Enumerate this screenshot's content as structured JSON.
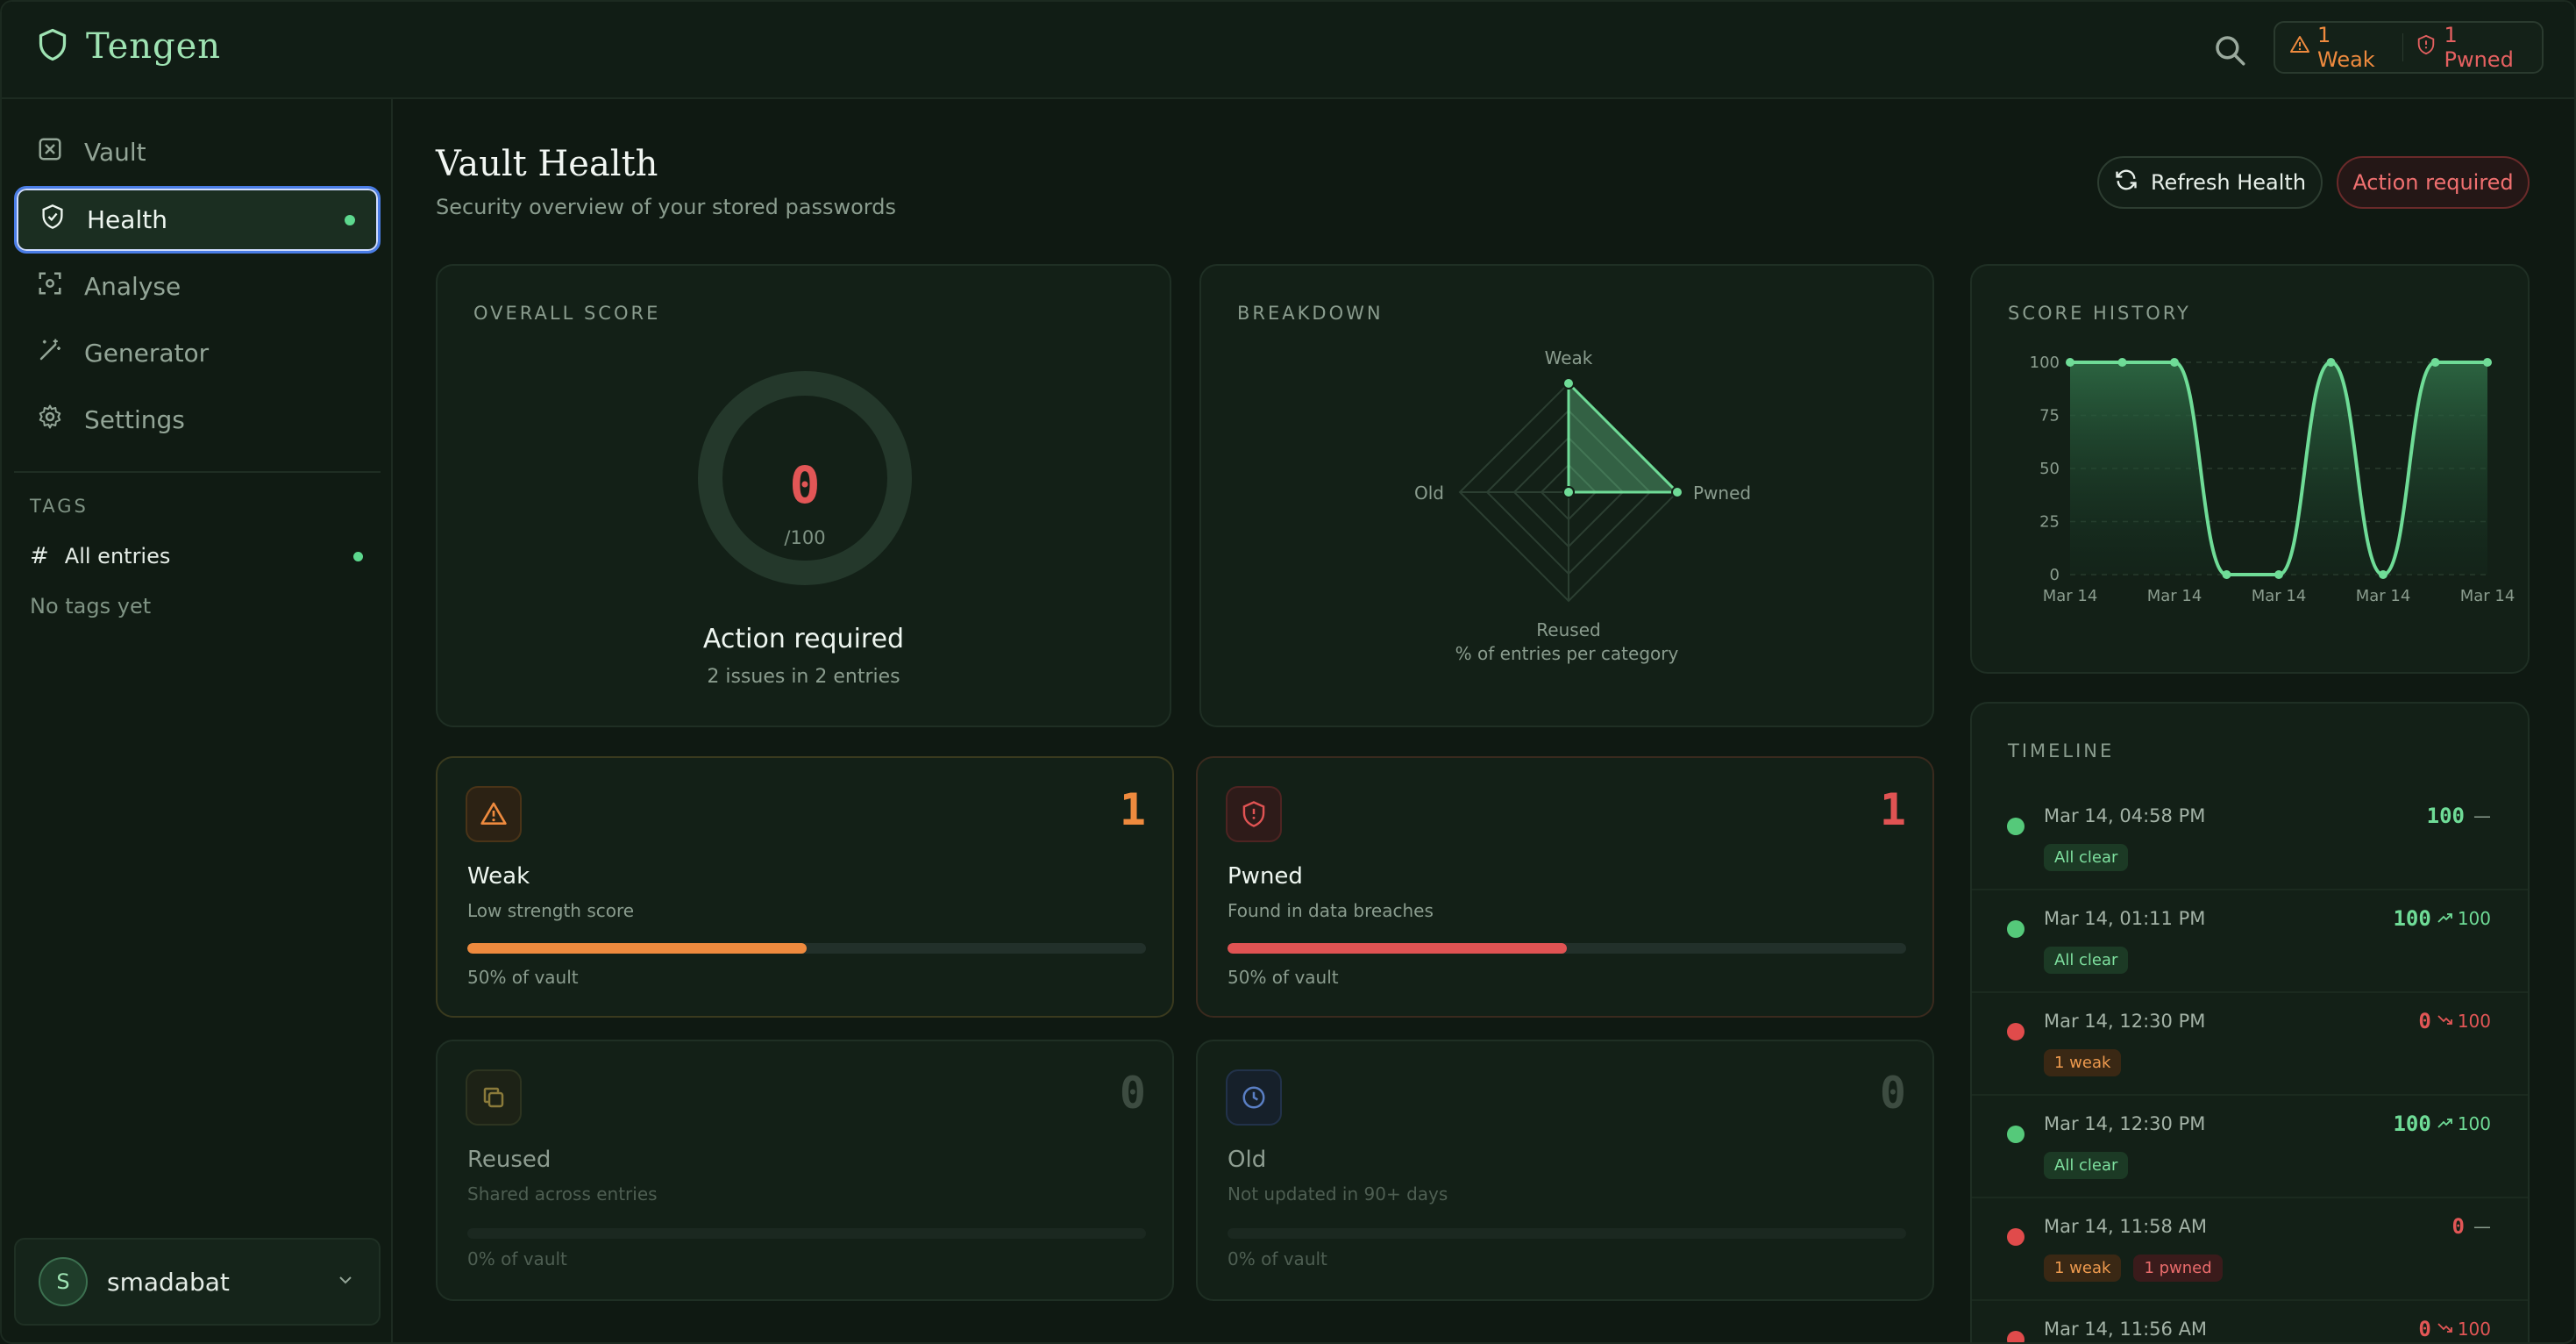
{
  "app": {
    "name": "Tengen"
  },
  "header": {
    "weak_alert": "1 Weak",
    "pwned_alert": "1 Pwned"
  },
  "sidebar": {
    "items": [
      {
        "label": "Vault",
        "icon": "vault-icon"
      },
      {
        "label": "Health",
        "icon": "shield-check-icon",
        "active": true
      },
      {
        "label": "Analyse",
        "icon": "scan-icon"
      },
      {
        "label": "Generator",
        "icon": "wand-icon"
      },
      {
        "label": "Settings",
        "icon": "gear-icon"
      }
    ],
    "tags_heading": "TAGS",
    "all_entries": "All entries",
    "no_tags": "No tags yet",
    "user": {
      "initial": "S",
      "name": "smadabat"
    }
  },
  "page": {
    "title": "Vault Health",
    "subtitle": "Security overview of your stored passwords",
    "refresh_label": "Refresh Health",
    "action_label": "Action required"
  },
  "overall": {
    "label": "OVERALL SCORE",
    "score": "0",
    "max": "/100",
    "score_value": 0,
    "status": "Action required",
    "issues": "2 issues in 2 entries"
  },
  "breakdown": {
    "label": "BREAKDOWN",
    "caption": "% of entries per category",
    "chart_data": {
      "type": "radar",
      "axes": [
        "Weak",
        "Pwned",
        "Reused",
        "Old"
      ],
      "values": [
        50,
        50,
        0,
        0
      ],
      "max": 50
    }
  },
  "history": {
    "label": "SCORE HISTORY",
    "chart_data": {
      "type": "area",
      "x": [
        "Mar 14",
        "Mar 14",
        "Mar 14",
        "Mar 14",
        "Mar 14",
        "Mar 14",
        "Mar 14",
        "Mar 14",
        "Mar 14"
      ],
      "values": [
        100,
        100,
        100,
        0,
        0,
        100,
        0,
        100,
        100
      ],
      "xticks": [
        "Mar 14",
        "Mar 14",
        "Mar 14",
        "Mar 14",
        "Mar 14"
      ],
      "yticks": [
        "100",
        "75",
        "50",
        "25",
        "0"
      ],
      "ylim": [
        0,
        100
      ],
      "color": "#6fdc97"
    }
  },
  "stats": [
    {
      "name": "Weak",
      "desc": "Low strength score",
      "count": "1",
      "pct_label": "50% of vault",
      "pct": 50,
      "color": "#ee8a3e",
      "icon": "warning-icon"
    },
    {
      "name": "Pwned",
      "desc": "Found in data breaches",
      "count": "1",
      "pct_label": "50% of vault",
      "pct": 50,
      "color": "#e05353",
      "icon": "shield-alert-icon"
    },
    {
      "name": "Reused",
      "desc": "Shared across entries",
      "count": "0",
      "pct_label": "0% of vault",
      "pct": 0,
      "color": "#b08b3a",
      "icon": "copy-icon"
    },
    {
      "name": "Old",
      "desc": "Not updated in 90+ days",
      "count": "0",
      "pct_label": "0% of vault",
      "pct": 0,
      "color": "#5a7fc4",
      "icon": "clock-icon"
    }
  ],
  "timeline": {
    "label": "TIMELINE",
    "items": [
      {
        "time": "Mar 14, 04:58 PM",
        "score": "100",
        "prev": "—",
        "trend": "none",
        "status": "good",
        "chips": [
          {
            "text": "All clear",
            "kind": "clear"
          }
        ]
      },
      {
        "time": "Mar 14, 01:11 PM",
        "score": "100",
        "prev": "100",
        "trend": "up",
        "status": "good",
        "chips": [
          {
            "text": "All clear",
            "kind": "clear"
          }
        ]
      },
      {
        "time": "Mar 14, 12:30 PM",
        "score": "0",
        "prev": "100",
        "trend": "down",
        "status": "bad",
        "chips": [
          {
            "text": "1 weak",
            "kind": "weak"
          }
        ]
      },
      {
        "time": "Mar 14, 12:30 PM",
        "score": "100",
        "prev": "100",
        "trend": "up",
        "status": "good",
        "chips": [
          {
            "text": "All clear",
            "kind": "clear"
          }
        ]
      },
      {
        "time": "Mar 14, 11:58 AM",
        "score": "0",
        "prev": "—",
        "trend": "none",
        "status": "bad",
        "chips": [
          {
            "text": "1 weak",
            "kind": "weak"
          },
          {
            "text": "1 pwned",
            "kind": "pwned"
          }
        ]
      },
      {
        "time": "Mar 14, 11:56 AM",
        "score": "0",
        "prev": "100",
        "trend": "down",
        "status": "bad",
        "chips": []
      }
    ]
  }
}
